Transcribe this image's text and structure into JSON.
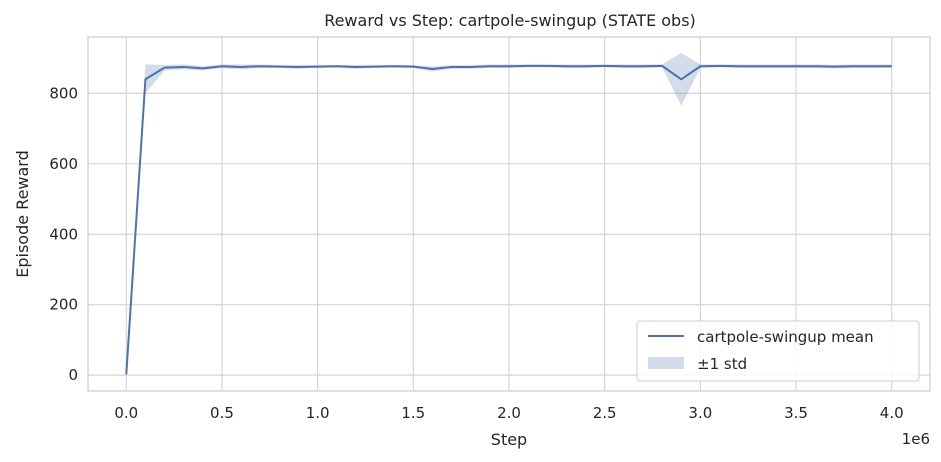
{
  "chart_data": {
    "type": "line",
    "title": "Reward vs Step: cartpole-swingup (STATE obs)",
    "xlabel": "Step",
    "ylabel": "Episode Reward",
    "x_offset_label": "1e6",
    "xlim": [
      -200000,
      4200000
    ],
    "ylim": [
      -45,
      960
    ],
    "x_ticks": [
      0,
      500000,
      1000000,
      1500000,
      2000000,
      2500000,
      3000000,
      3500000,
      4000000
    ],
    "x_tick_labels": [
      "0.0",
      "0.5",
      "1.0",
      "1.5",
      "2.0",
      "2.5",
      "3.0",
      "3.5",
      "4.0"
    ],
    "y_ticks": [
      0,
      200,
      400,
      600,
      800
    ],
    "y_tick_labels": [
      "0",
      "200",
      "400",
      "600",
      "800"
    ],
    "grid": true,
    "legend_position": "bottom-right",
    "colors": {
      "line": "#4c72b0",
      "band": "#4c72b0"
    },
    "x": [
      0,
      100000,
      200000,
      300000,
      400000,
      500000,
      600000,
      700000,
      800000,
      900000,
      1000000,
      1100000,
      1200000,
      1300000,
      1400000,
      1500000,
      1600000,
      1700000,
      1800000,
      1900000,
      2000000,
      2100000,
      2200000,
      2300000,
      2400000,
      2500000,
      2600000,
      2700000,
      2800000,
      2900000,
      3000000,
      3100000,
      3200000,
      3300000,
      3400000,
      3500000,
      3600000,
      3700000,
      3800000,
      3900000,
      4000000
    ],
    "series": [
      {
        "name": "cartpole-swingup mean",
        "values": [
          2,
          840,
          873,
          875,
          871,
          877,
          875,
          877,
          876,
          875,
          876,
          877,
          875,
          876,
          877,
          876,
          869,
          875,
          875,
          877,
          877,
          878,
          878,
          877,
          877,
          878,
          877,
          877,
          878,
          840,
          877,
          878,
          877,
          877,
          877,
          877,
          877,
          876,
          877,
          877,
          877
        ],
        "std_lower": [
          0,
          800,
          865,
          868,
          865,
          872,
          868,
          872,
          872,
          870,
          872,
          873,
          870,
          872,
          873,
          872,
          862,
          870,
          870,
          872,
          872,
          874,
          874,
          872,
          872,
          874,
          872,
          872,
          874,
          765,
          872,
          874,
          872,
          872,
          872,
          872,
          872,
          871,
          872,
          872,
          872
        ],
        "std_upper": [
          4,
          882,
          881,
          882,
          877,
          882,
          882,
          882,
          880,
          880,
          880,
          881,
          880,
          880,
          881,
          880,
          876,
          880,
          880,
          882,
          882,
          882,
          882,
          882,
          882,
          882,
          882,
          882,
          882,
          915,
          882,
          882,
          882,
          882,
          882,
          882,
          882,
          881,
          882,
          882,
          882
        ]
      }
    ],
    "legend": [
      "cartpole-swingup mean",
      "±1 std"
    ]
  }
}
